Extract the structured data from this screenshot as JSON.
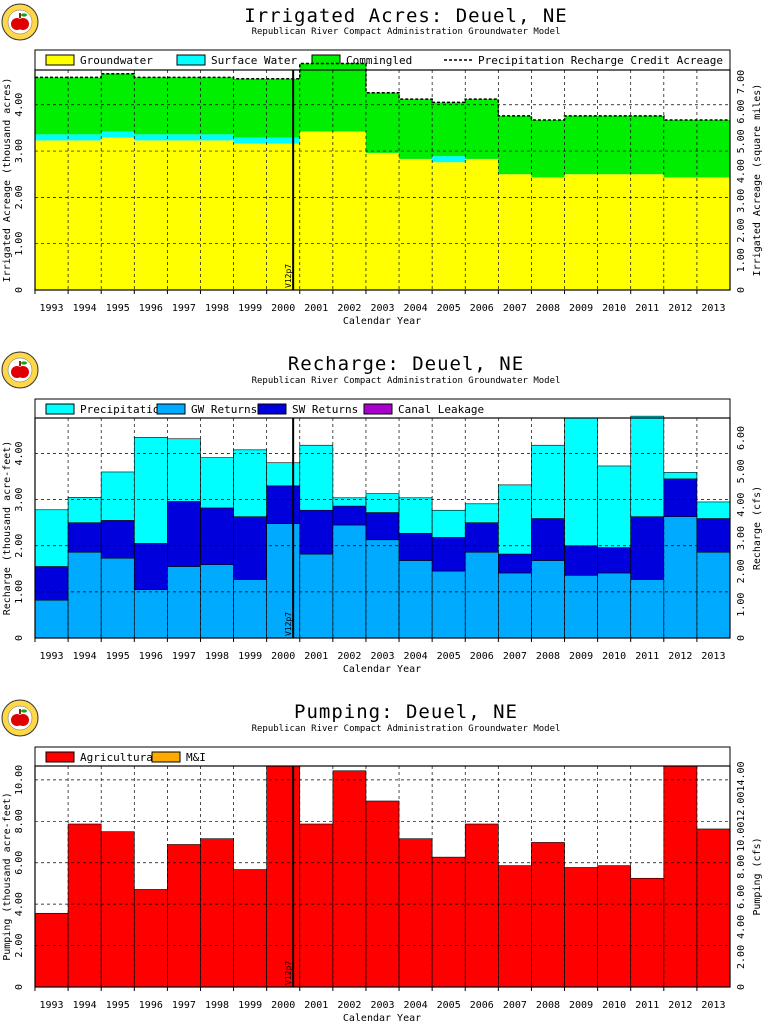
{
  "years": [
    "1993",
    "1994",
    "1995",
    "1996",
    "1997",
    "1998",
    "1999",
    "2000",
    "2001",
    "2002",
    "2003",
    "2004",
    "2005",
    "2006",
    "2007",
    "2008",
    "2009",
    "2010",
    "2011",
    "2012",
    "2013"
  ],
  "marker_label": "V12p7",
  "colors": {
    "groundwater": "#ffff00",
    "surface_water": "#00ffff",
    "commingled": "#00ee00",
    "precipitation": "#00ffff",
    "gw_returns": "#00aaff",
    "sw_returns": "#0000dd",
    "canal_leakage": "#aa00cc",
    "agricultural": "#ff0000",
    "mi": "#ffaa00"
  },
  "logo": {
    "icon": "apple-icon"
  },
  "chart_data": [
    {
      "id": "irrigated",
      "type": "area",
      "title": "Irrigated Acres: Deuel, NE",
      "subtitle": "Republican River Compact Administration Groundwater Model",
      "xlabel": "Calendar Year",
      "ylabel": "Irrigated Acreage (thousand acres)",
      "y2label": "Irrigated Acreage (square miles)",
      "ylim": [
        0,
        4.75
      ],
      "yticks": [
        "0",
        "1.00",
        "2.00",
        "3.00",
        "4.00"
      ],
      "y2ticks": [
        "0",
        "1.00",
        "2.00",
        "3.00",
        "4.00",
        "5.00",
        "6.00",
        "7.00"
      ],
      "grid": true,
      "legend_placement": "top",
      "categories": [
        "1993",
        "1994",
        "1995",
        "1996",
        "1997",
        "1998",
        "1999",
        "2000",
        "2001",
        "2002",
        "2003",
        "2004",
        "2005",
        "2006",
        "2007",
        "2008",
        "2009",
        "2010",
        "2011",
        "2012",
        "2013"
      ],
      "series": [
        {
          "name": "Groundwater",
          "color": "groundwater",
          "values": [
            3.23,
            3.23,
            3.29,
            3.23,
            3.23,
            3.23,
            3.16,
            3.16,
            3.42,
            3.42,
            2.96,
            2.83,
            2.76,
            2.83,
            2.5,
            2.43,
            2.5,
            2.5,
            2.5,
            2.43,
            2.43
          ]
        },
        {
          "name": "Surface Water",
          "color": "surface_water",
          "values": [
            0.13,
            0.13,
            0.13,
            0.13,
            0.13,
            0.13,
            0.13,
            0.13,
            0,
            0,
            0,
            0,
            0.13,
            0,
            0,
            0,
            0,
            0,
            0,
            0,
            0
          ]
        },
        {
          "name": "Commingled",
          "color": "commingled",
          "values": [
            1.23,
            1.23,
            1.25,
            1.23,
            1.23,
            1.23,
            1.27,
            1.27,
            1.47,
            1.47,
            1.3,
            1.29,
            1.16,
            1.29,
            1.26,
            1.24,
            1.26,
            1.26,
            1.26,
            1.24,
            1.24
          ]
        }
      ],
      "line": {
        "name": "Precipitation Recharge Credit Acreage",
        "values": [
          4.59,
          4.59,
          4.67,
          4.59,
          4.59,
          4.59,
          4.56,
          4.56,
          4.89,
          4.89,
          4.26,
          4.12,
          4.05,
          4.12,
          3.76,
          3.67,
          3.76,
          3.76,
          3.76,
          3.67,
          3.67
        ]
      }
    },
    {
      "id": "recharge",
      "type": "bar",
      "title": "Recharge: Deuel, NE",
      "subtitle": "Republican River Compact Administration Groundwater Model",
      "xlabel": "Calendar Year",
      "ylabel": "Recharge (thousand acre-feet)",
      "y2label": "Recharge (cfs)",
      "ylim": [
        0,
        4.77
      ],
      "yticks": [
        "0",
        "1.00",
        "2.00",
        "3.00",
        "4.00"
      ],
      "y2ticks": [
        "0",
        "1.00",
        "2.00",
        "3.00",
        "4.00",
        "5.00",
        "6.00"
      ],
      "grid": true,
      "legend_placement": "top",
      "categories": [
        "1993",
        "1994",
        "1995",
        "1996",
        "1997",
        "1998",
        "1999",
        "2000",
        "2001",
        "2002",
        "2003",
        "2004",
        "2005",
        "2006",
        "2007",
        "2008",
        "2009",
        "2010",
        "2011",
        "2012",
        "2013"
      ],
      "series": [
        {
          "name": "GW Returns",
          "color": "gw_returns",
          "values": [
            0.82,
            1.86,
            1.73,
            1.05,
            1.55,
            1.59,
            1.27,
            2.48,
            1.82,
            2.45,
            2.13,
            1.68,
            1.45,
            1.86,
            1.41,
            1.68,
            1.36,
            1.41,
            1.27,
            2.63,
            1.86
          ]
        },
        {
          "name": "SW Returns",
          "color": "sw_returns",
          "values": [
            0.73,
            0.64,
            0.82,
            1.0,
            1.41,
            1.23,
            1.36,
            0.82,
            0.95,
            0.41,
            0.59,
            0.59,
            0.73,
            0.64,
            0.41,
            0.91,
            0.64,
            0.55,
            1.36,
            0.82,
            0.73
          ]
        },
        {
          "name": "Precipitation",
          "color": "precipitation",
          "values": [
            1.23,
            0.55,
            1.05,
            2.3,
            1.36,
            1.09,
            1.45,
            0.5,
            1.41,
            0.18,
            0.41,
            0.77,
            0.59,
            0.41,
            1.5,
            1.59,
            2.77,
            1.77,
            2.18,
            0.14,
            0.36
          ]
        },
        {
          "name": "Canal Leakage",
          "color": "canal_leakage",
          "values": [
            0,
            0,
            0,
            0,
            0,
            0,
            0,
            0,
            0,
            0,
            0,
            0,
            0,
            0,
            0,
            0,
            0,
            0,
            0,
            0,
            0
          ]
        }
      ]
    },
    {
      "id": "pumping",
      "type": "bar",
      "title": "Pumping: Deuel, NE",
      "subtitle": "Republican River Compact Administration Groundwater Model",
      "xlabel": "Calendar Year",
      "ylabel": "Pumping (thousand acre-feet)",
      "y2label": "Pumping (cfs)",
      "ylim": [
        0,
        10.67
      ],
      "yticks": [
        "0",
        "2.00",
        "4.00",
        "6.00",
        "8.00",
        "10.00"
      ],
      "y2ticks": [
        "0",
        "2.00",
        "4.00",
        "6.00",
        "8.00",
        "10.00",
        "12.00",
        "14.00"
      ],
      "grid": true,
      "legend_placement": "top",
      "categories": [
        "1993",
        "1994",
        "1995",
        "1996",
        "1997",
        "1998",
        "1999",
        "2000",
        "2001",
        "2002",
        "2003",
        "2004",
        "2005",
        "2006",
        "2007",
        "2008",
        "2009",
        "2010",
        "2011",
        "2012",
        "2013"
      ],
      "series": [
        {
          "name": "Agricultural",
          "color": "agricultural",
          "values": [
            3.56,
            7.87,
            7.5,
            4.71,
            6.88,
            7.16,
            5.67,
            10.67,
            7.87,
            10.44,
            8.98,
            7.16,
            6.27,
            7.87,
            5.86,
            6.98,
            5.77,
            5.86,
            5.25,
            10.67,
            7.63
          ]
        },
        {
          "name": "M&I",
          "color": "mi",
          "values": [
            0,
            0,
            0,
            0,
            0,
            0,
            0,
            0,
            0,
            0,
            0,
            0,
            0,
            0,
            0,
            0,
            0,
            0,
            0,
            0,
            0
          ]
        }
      ]
    }
  ]
}
